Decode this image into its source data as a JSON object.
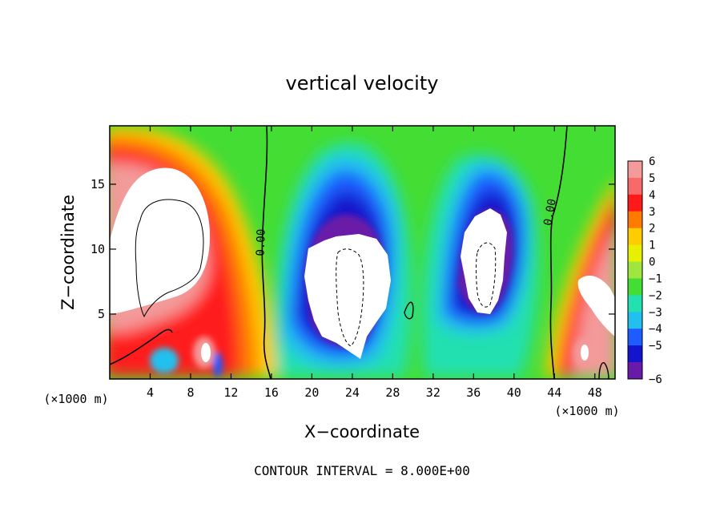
{
  "chart_data": {
    "type": "heatmap",
    "title": "vertical velocity",
    "xlabel": "X−coordinate",
    "ylabel": "Z−coordinate",
    "x_units_left": "(×1000 m)",
    "x_units_right": "(×1000 m)",
    "footer": "CONTOUR INTERVAL = 8.000E+00",
    "xlim": [
      0,
      50
    ],
    "ylim": [
      0,
      19.5
    ],
    "x_ticks": [
      4,
      8,
      12,
      16,
      20,
      24,
      28,
      32,
      36,
      40,
      44,
      48
    ],
    "y_ticks": [
      5,
      10,
      15
    ],
    "contour_labels": [
      {
        "text": "0.00",
        "x": 15.3,
        "y": 10.5
      },
      {
        "text": "0.00",
        "x": 43.9,
        "y": 12.8
      }
    ],
    "colorbar": {
      "levels": [
        6,
        5,
        4,
        3,
        2,
        1,
        0,
        -1,
        -2,
        -3,
        -4,
        -5,
        -6
      ],
      "labels": [
        "6",
        "5",
        "4",
        "3",
        "2",
        "1",
        "0",
        "−1",
        "−2",
        "−3",
        "−4",
        "−5",
        "−6"
      ],
      "colors": [
        "#f39a9a",
        "#f86a6a",
        "#ff1a1a",
        "#ff7a00",
        "#ffcc00",
        "#e6f000",
        "#a0e640",
        "#44dd33",
        "#22e0b0",
        "#22c0ee",
        "#1f5cff",
        "#1414cc",
        "#6a1aa8"
      ]
    },
    "features": [
      {
        "kind": "updraft",
        "x_center": 6,
        "z_center": 10,
        "peak": 6
      },
      {
        "kind": "downdraft",
        "x_center": 23.5,
        "z_center": 8.5,
        "peak": -6
      },
      {
        "kind": "downdraft",
        "x_center": 36.5,
        "z_center": 9.5,
        "peak": -6
      },
      {
        "kind": "updraft",
        "x_center": 48.5,
        "z_center": 7,
        "peak": 6
      }
    ]
  }
}
